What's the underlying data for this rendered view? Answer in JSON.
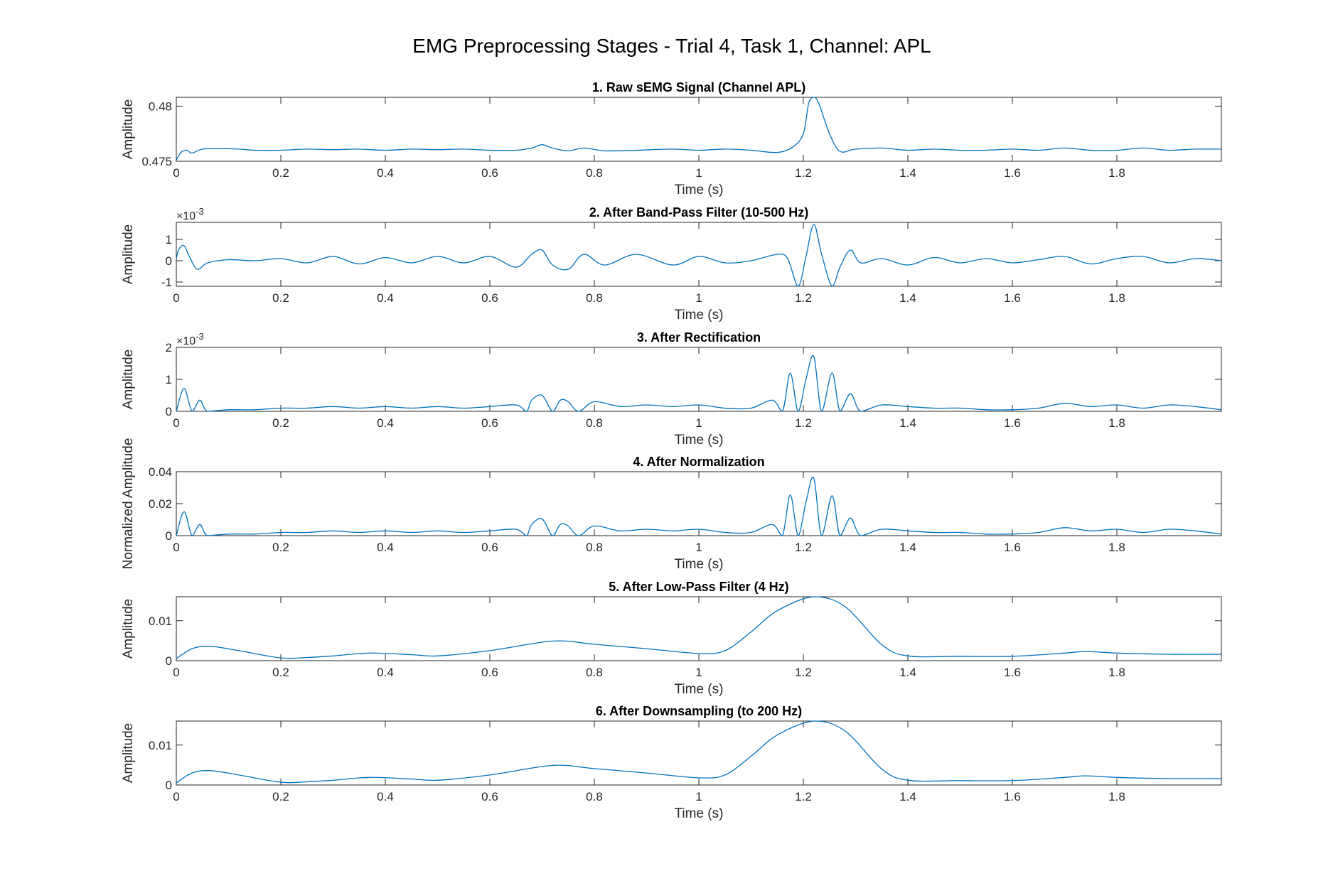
{
  "figure": {
    "title": "EMG Preprocessing Stages - Trial 4, Task 1, Channel: APL",
    "line_color": "#0072BD",
    "axes_color": "#262626"
  },
  "chart_data": [
    {
      "type": "line",
      "title": "1. Raw sEMG Signal (Channel APL)",
      "xlabel": "Time (s)",
      "ylabel": "Amplitude",
      "xlim": [
        0,
        2.0
      ],
      "ylim": [
        0.475,
        0.4808
      ],
      "xticks": [
        "0",
        "0.2",
        "0.4",
        "0.6",
        "0.8",
        "1",
        "1.2",
        "1.4",
        "1.6",
        "1.8"
      ],
      "yticks": [
        {
          "v": 0.475,
          "t": "0.475"
        },
        {
          "v": 0.48,
          "t": "0.48"
        }
      ],
      "exponent": "",
      "series": [
        {
          "x": [
            0,
            0.005,
            0.01,
            0.02,
            0.03,
            0.05,
            0.08,
            0.12,
            0.15,
            0.2,
            0.25,
            0.3,
            0.35,
            0.4,
            0.45,
            0.5,
            0.55,
            0.6,
            0.65,
            0.68,
            0.7,
            0.72,
            0.75,
            0.78,
            0.82,
            0.88,
            0.95,
            1.0,
            1.05,
            1.1,
            1.15,
            1.18,
            1.2,
            1.21,
            1.22,
            1.23,
            1.25,
            1.27,
            1.3,
            1.35,
            1.4,
            1.45,
            1.5,
            1.55,
            1.6,
            1.65,
            1.7,
            1.75,
            1.8,
            1.85,
            1.9,
            1.95,
            2.0
          ],
          "y": [
            0.4751,
            0.47555,
            0.47585,
            0.476,
            0.47575,
            0.4761,
            0.47615,
            0.4761,
            0.476,
            0.476,
            0.4761,
            0.47605,
            0.4761,
            0.476,
            0.4761,
            0.47605,
            0.4761,
            0.476,
            0.476,
            0.4762,
            0.4765,
            0.4762,
            0.47595,
            0.4762,
            0.47595,
            0.476,
            0.4761,
            0.476,
            0.4761,
            0.476,
            0.4758,
            0.4763,
            0.4775,
            0.4802,
            0.4808,
            0.4802,
            0.4775,
            0.4759,
            0.4761,
            0.4762,
            0.476,
            0.4761,
            0.476,
            0.476,
            0.4761,
            0.476,
            0.4762,
            0.476,
            0.476,
            0.4762,
            0.476,
            0.4761,
            0.4761
          ]
        }
      ]
    },
    {
      "type": "line",
      "title": "2. After Band-Pass Filter (10-500 Hz)",
      "xlabel": "Time (s)",
      "ylabel": "Amplitude",
      "xlim": [
        0,
        2.0
      ],
      "ylim": [
        -1.2,
        1.8
      ],
      "xticks": [
        "0",
        "0.2",
        "0.4",
        "0.6",
        "0.8",
        "1",
        "1.2",
        "1.4",
        "1.6",
        "1.8"
      ],
      "yticks": [
        {
          "v": -1,
          "t": "-1"
        },
        {
          "v": 0,
          "t": "0"
        },
        {
          "v": 1,
          "t": "1"
        }
      ],
      "exponent": "-3",
      "series": [
        {
          "x": [
            0,
            0.005,
            0.015,
            0.025,
            0.04,
            0.06,
            0.1,
            0.15,
            0.2,
            0.25,
            0.3,
            0.35,
            0.4,
            0.45,
            0.5,
            0.55,
            0.6,
            0.65,
            0.68,
            0.7,
            0.72,
            0.75,
            0.78,
            0.82,
            0.88,
            0.95,
            1.0,
            1.05,
            1.1,
            1.15,
            1.17,
            1.19,
            1.205,
            1.22,
            1.235,
            1.255,
            1.27,
            1.29,
            1.31,
            1.35,
            1.4,
            1.45,
            1.5,
            1.55,
            1.6,
            1.65,
            1.7,
            1.75,
            1.8,
            1.85,
            1.9,
            1.95,
            2.0
          ],
          "y": [
            0.1,
            0.55,
            0.7,
            0.2,
            -0.4,
            -0.1,
            0.05,
            0.0,
            0.1,
            -0.1,
            0.2,
            -0.15,
            0.15,
            -0.1,
            0.2,
            -0.1,
            0.2,
            -0.3,
            0.3,
            0.5,
            -0.2,
            -0.4,
            0.3,
            -0.2,
            0.3,
            -0.2,
            0.2,
            -0.1,
            0.0,
            0.3,
            0.1,
            -1.2,
            0.2,
            1.7,
            0.3,
            -1.2,
            -0.3,
            0.5,
            -0.1,
            0.1,
            -0.2,
            0.15,
            -0.1,
            0.1,
            -0.1,
            0.05,
            0.2,
            -0.15,
            0.1,
            0.2,
            -0.1,
            0.1,
            0.0
          ]
        }
      ]
    },
    {
      "type": "line",
      "title": "3. After Rectification",
      "xlabel": "Time (s)",
      "ylabel": "Amplitude",
      "xlim": [
        0,
        2.0
      ],
      "ylim": [
        0,
        2
      ],
      "xticks": [
        "0",
        "0.2",
        "0.4",
        "0.6",
        "0.8",
        "1",
        "1.2",
        "1.4",
        "1.6",
        "1.8"
      ],
      "yticks": [
        {
          "v": 0,
          "t": "0"
        },
        {
          "v": 1,
          "t": "1"
        },
        {
          "v": 2,
          "t": "2"
        }
      ],
      "exponent": "-3",
      "series": [
        {
          "x": [
            0,
            0.015,
            0.03,
            0.045,
            0.06,
            0.1,
            0.15,
            0.2,
            0.25,
            0.3,
            0.35,
            0.4,
            0.45,
            0.5,
            0.55,
            0.6,
            0.65,
            0.67,
            0.68,
            0.7,
            0.72,
            0.735,
            0.75,
            0.77,
            0.8,
            0.85,
            0.9,
            0.95,
            1.0,
            1.05,
            1.1,
            1.14,
            1.16,
            1.175,
            1.19,
            1.205,
            1.22,
            1.235,
            1.255,
            1.27,
            1.29,
            1.31,
            1.35,
            1.4,
            1.45,
            1.5,
            1.55,
            1.6,
            1.65,
            1.7,
            1.75,
            1.8,
            1.85,
            1.9,
            1.95,
            2.0
          ],
          "y": [
            0.0,
            0.72,
            0.0,
            0.35,
            0.0,
            0.05,
            0.05,
            0.1,
            0.1,
            0.15,
            0.1,
            0.15,
            0.1,
            0.15,
            0.1,
            0.15,
            0.2,
            0.0,
            0.35,
            0.5,
            0.0,
            0.35,
            0.3,
            0.0,
            0.3,
            0.15,
            0.2,
            0.15,
            0.2,
            0.1,
            0.1,
            0.35,
            0.0,
            1.2,
            0.0,
            1.0,
            1.72,
            0.0,
            1.2,
            0.0,
            0.55,
            0.0,
            0.2,
            0.15,
            0.1,
            0.1,
            0.05,
            0.05,
            0.1,
            0.25,
            0.15,
            0.2,
            0.1,
            0.2,
            0.15,
            0.05
          ]
        }
      ]
    },
    {
      "type": "line",
      "title": "4. After Normalization",
      "xlabel": "Time (s)",
      "ylabel": "Normalized Amplitude",
      "xlim": [
        0,
        2.0
      ],
      "ylim": [
        0,
        0.04
      ],
      "xticks": [
        "0",
        "0.2",
        "0.4",
        "0.6",
        "0.8",
        "1",
        "1.2",
        "1.4",
        "1.6",
        "1.8"
      ],
      "yticks": [
        {
          "v": 0,
          "t": "0"
        },
        {
          "v": 0.02,
          "t": "0.02"
        },
        {
          "v": 0.04,
          "t": "0.04"
        }
      ],
      "exponent": "",
      "series": [
        {
          "x": [
            0,
            0.015,
            0.03,
            0.045,
            0.06,
            0.1,
            0.15,
            0.2,
            0.25,
            0.3,
            0.35,
            0.4,
            0.45,
            0.5,
            0.55,
            0.6,
            0.65,
            0.67,
            0.68,
            0.7,
            0.72,
            0.735,
            0.75,
            0.77,
            0.8,
            0.85,
            0.9,
            0.95,
            1.0,
            1.05,
            1.1,
            1.14,
            1.16,
            1.175,
            1.19,
            1.205,
            1.22,
            1.235,
            1.255,
            1.27,
            1.29,
            1.31,
            1.35,
            1.4,
            1.45,
            1.5,
            1.55,
            1.6,
            1.65,
            1.7,
            1.75,
            1.8,
            1.85,
            1.9,
            1.95,
            2.0
          ],
          "y": [
            0.0,
            0.015,
            0.0,
            0.007,
            0.0,
            0.001,
            0.001,
            0.002,
            0.002,
            0.003,
            0.002,
            0.003,
            0.002,
            0.003,
            0.002,
            0.003,
            0.004,
            0.0,
            0.007,
            0.0105,
            0.0,
            0.007,
            0.006,
            0.0,
            0.006,
            0.003,
            0.004,
            0.003,
            0.004,
            0.002,
            0.002,
            0.007,
            0.0,
            0.0255,
            0.0,
            0.021,
            0.036,
            0.0,
            0.025,
            0.0,
            0.011,
            0.0,
            0.004,
            0.003,
            0.002,
            0.002,
            0.001,
            0.001,
            0.002,
            0.005,
            0.003,
            0.004,
            0.002,
            0.004,
            0.003,
            0.001
          ]
        }
      ]
    },
    {
      "type": "line",
      "title": "5. After Low-Pass Filter (4 Hz)",
      "xlabel": "Time (s)",
      "ylabel": "Amplitude",
      "xlim": [
        0,
        2.0
      ],
      "ylim": [
        0,
        0.016
      ],
      "xticks": [
        "0",
        "0.2",
        "0.4",
        "0.6",
        "0.8",
        "1",
        "1.2",
        "1.4",
        "1.6",
        "1.8"
      ],
      "yticks": [
        {
          "v": 0,
          "t": "0"
        },
        {
          "v": 0.01,
          "t": "0.01"
        }
      ],
      "exponent": "",
      "series": [
        {
          "x": [
            0,
            0.03,
            0.065,
            0.12,
            0.2,
            0.25,
            0.3,
            0.37,
            0.45,
            0.5,
            0.6,
            0.72,
            0.8,
            0.9,
            1.0,
            1.05,
            1.1,
            1.15,
            1.22,
            1.28,
            1.35,
            1.4,
            1.5,
            1.6,
            1.7,
            1.74,
            1.8,
            1.9,
            2.0
          ],
          "y": [
            0.0005,
            0.003,
            0.0036,
            0.0025,
            0.0007,
            0.0008,
            0.0012,
            0.0019,
            0.0015,
            0.0012,
            0.0025,
            0.0049,
            0.0041,
            0.003,
            0.0018,
            0.0025,
            0.0072,
            0.0125,
            0.016,
            0.0135,
            0.004,
            0.0012,
            0.0011,
            0.0011,
            0.0019,
            0.0023,
            0.0019,
            0.0016,
            0.0016
          ]
        }
      ]
    },
    {
      "type": "line",
      "title": "6. After Downsampling (to 200 Hz)",
      "xlabel": "Time (s)",
      "ylabel": "Amplitude",
      "xlim": [
        0,
        2.0
      ],
      "ylim": [
        0,
        0.016
      ],
      "xticks": [
        "0",
        "0.2",
        "0.4",
        "0.6",
        "0.8",
        "1",
        "1.2",
        "1.4",
        "1.6",
        "1.8"
      ],
      "yticks": [
        {
          "v": 0,
          "t": "0"
        },
        {
          "v": 0.01,
          "t": "0.01"
        }
      ],
      "exponent": "",
      "series": [
        {
          "x": [
            0,
            0.03,
            0.065,
            0.12,
            0.2,
            0.25,
            0.3,
            0.37,
            0.45,
            0.5,
            0.6,
            0.72,
            0.8,
            0.9,
            1.0,
            1.05,
            1.1,
            1.15,
            1.22,
            1.28,
            1.35,
            1.4,
            1.5,
            1.6,
            1.7,
            1.74,
            1.8,
            1.9,
            2.0
          ],
          "y": [
            0.0005,
            0.003,
            0.0036,
            0.0025,
            0.0007,
            0.0008,
            0.0012,
            0.0019,
            0.0015,
            0.0012,
            0.0025,
            0.0049,
            0.0041,
            0.003,
            0.0018,
            0.0025,
            0.0072,
            0.0125,
            0.016,
            0.0135,
            0.004,
            0.0012,
            0.0011,
            0.0011,
            0.0019,
            0.0023,
            0.0019,
            0.0016,
            0.0016
          ]
        }
      ]
    }
  ]
}
